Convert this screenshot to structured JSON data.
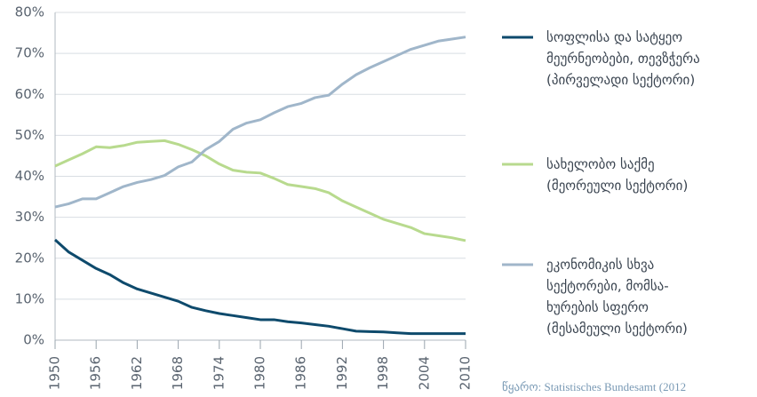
{
  "chart_data": {
    "type": "line",
    "x": [
      1950,
      1952,
      1954,
      1956,
      1958,
      1960,
      1962,
      1964,
      1966,
      1968,
      1970,
      1972,
      1974,
      1976,
      1978,
      1980,
      1982,
      1984,
      1986,
      1988,
      1990,
      1992,
      1994,
      1996,
      1998,
      2000,
      2002,
      2004,
      2006,
      2008,
      2010
    ],
    "series": [
      {
        "name": "სოფლისა და სატყეო\nმეურნეობები, თევზჭერა\n(პირველადი სექტორი)",
        "color": "#0e4a6c",
        "values": [
          24.5,
          21.5,
          19.5,
          17.5,
          16,
          14,
          12.5,
          11.5,
          10.5,
          9.5,
          8,
          7.2,
          6.5,
          6,
          5.5,
          5,
          5,
          4.5,
          4.2,
          3.8,
          3.4,
          2.8,
          2.2,
          2.1,
          2.0,
          1.8,
          1.6,
          1.6,
          1.6,
          1.6,
          1.6
        ]
      },
      {
        "name": "სახელობო საქმე\n(მეორეული სექტორი)",
        "color": "#b8da8e",
        "values": [
          42.5,
          44,
          45.5,
          47.2,
          47,
          47.5,
          48.3,
          48.5,
          48.7,
          47.8,
          46.5,
          45,
          43,
          41.5,
          41,
          40.8,
          39.5,
          38,
          37.5,
          37,
          36,
          34,
          32.5,
          31,
          29.5,
          28.5,
          27.5,
          26,
          25.5,
          25,
          24.3
        ]
      },
      {
        "name": "ეკონომიკის სხვა\nსექტორები, მომსა-\nხურების სფერო\n(მესამეული სექტორი)",
        "color": "#a0b6ca",
        "values": [
          32.5,
          33.3,
          34.5,
          34.5,
          36,
          37.5,
          38.5,
          39.2,
          40.2,
          42.3,
          43.5,
          46.5,
          48.5,
          51.5,
          53,
          53.8,
          55.5,
          57,
          57.8,
          59.2,
          59.8,
          62.5,
          64.8,
          66.5,
          68,
          69.5,
          71,
          72,
          73,
          73.5,
          74
        ]
      }
    ],
    "xlim": [
      1950,
      2010
    ],
    "xticks": [
      1950,
      1956,
      1962,
      1968,
      1974,
      1980,
      1986,
      1992,
      1998,
      2004,
      2010
    ],
    "ylim": [
      0,
      80
    ],
    "yticks": [
      {
        "value": 0,
        "label": "0%"
      },
      {
        "value": 10,
        "label": "10%"
      },
      {
        "value": 20,
        "label": "20%"
      },
      {
        "value": 30,
        "label": "30%"
      },
      {
        "value": 40,
        "label": "40%"
      },
      {
        "value": 50,
        "label": "50%"
      },
      {
        "value": 60,
        "label": "60%"
      },
      {
        "value": 70,
        "label": "70%"
      },
      {
        "value": 80,
        "label": "80%"
      }
    ],
    "grid": true,
    "source": "წყარო: Statistisches Bundesamt (2012"
  }
}
